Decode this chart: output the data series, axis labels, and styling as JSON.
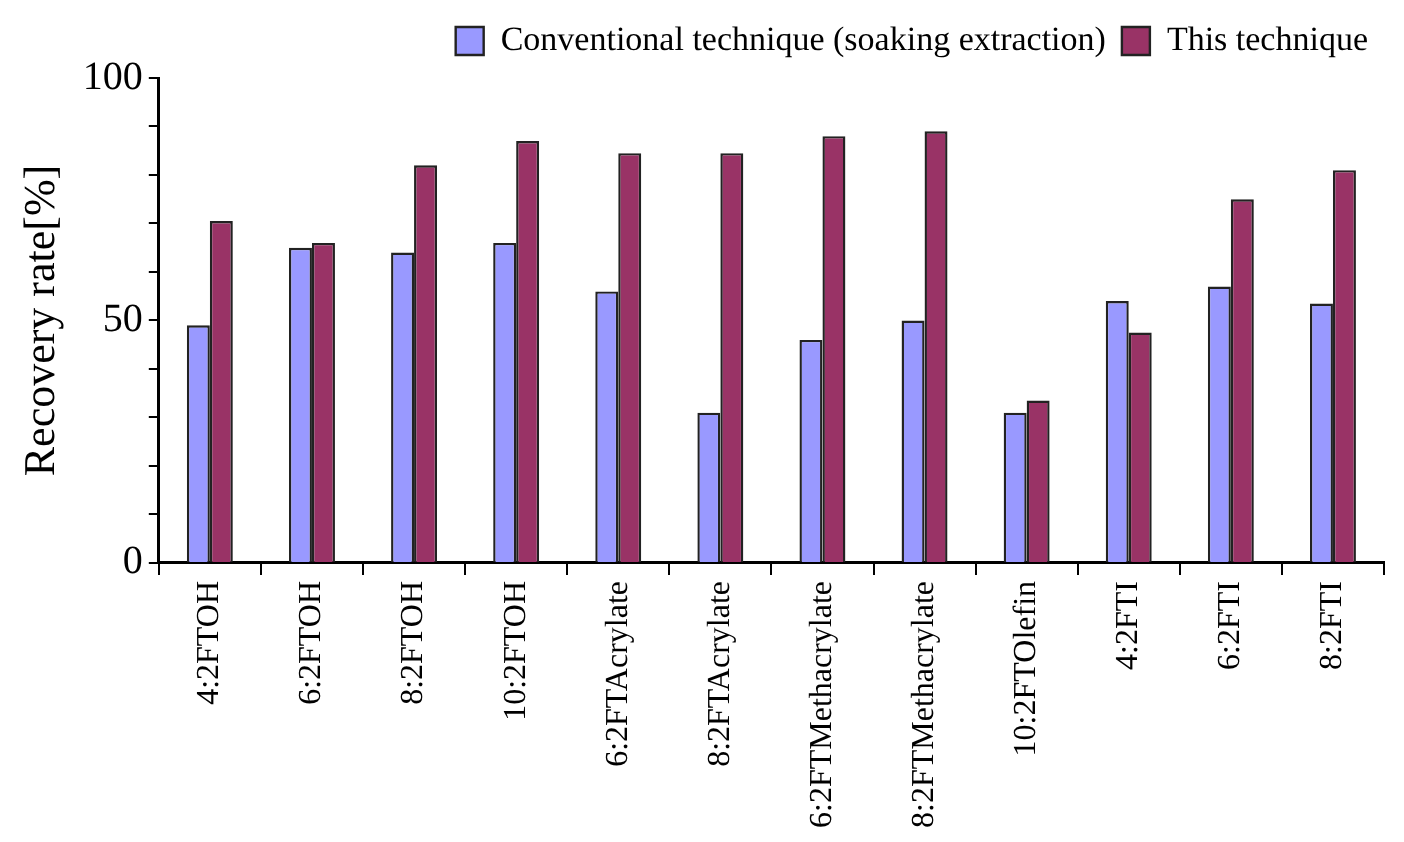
{
  "chart_data": {
    "type": "bar",
    "ylabel": "Recovery rate[%]",
    "categories": [
      "4:2FTOH",
      "6:2FTOH",
      "8:2FTOH",
      "10:2FTOH",
      "6:2FTAcrylate",
      "8:2FTAcrylate",
      "6:2FTMethacrylate",
      "8:2FTMethacrylate",
      "10:2FTOlefin",
      "4:2FTI",
      "6:2FTI",
      "8:2FTI"
    ],
    "series": [
      {
        "name": "Conventional technique (soaking extraction)",
        "color": "#9999ff",
        "values": [
          49,
          65,
          64,
          66,
          56,
          31,
          46,
          50,
          31,
          54,
          57,
          53.5
        ]
      },
      {
        "name": "This technique",
        "color": "#993366",
        "values": [
          70.5,
          66,
          82,
          87,
          84.5,
          84.5,
          88,
          89,
          33.5,
          47.5,
          75,
          81
        ]
      }
    ],
    "ylim": [
      0,
      100
    ],
    "yticks": [
      0,
      {
        "value": 10,
        "label": null
      },
      {
        "value": 20,
        "label": null
      },
      {
        "value": 30,
        "label": null
      },
      {
        "value": 40,
        "label": null
      },
      50,
      {
        "value": 60,
        "label": null
      },
      {
        "value": 70,
        "label": null
      },
      {
        "value": 80,
        "label": null
      },
      {
        "value": 90,
        "label": null
      },
      100
    ],
    "grid": false,
    "legend": "top right"
  }
}
